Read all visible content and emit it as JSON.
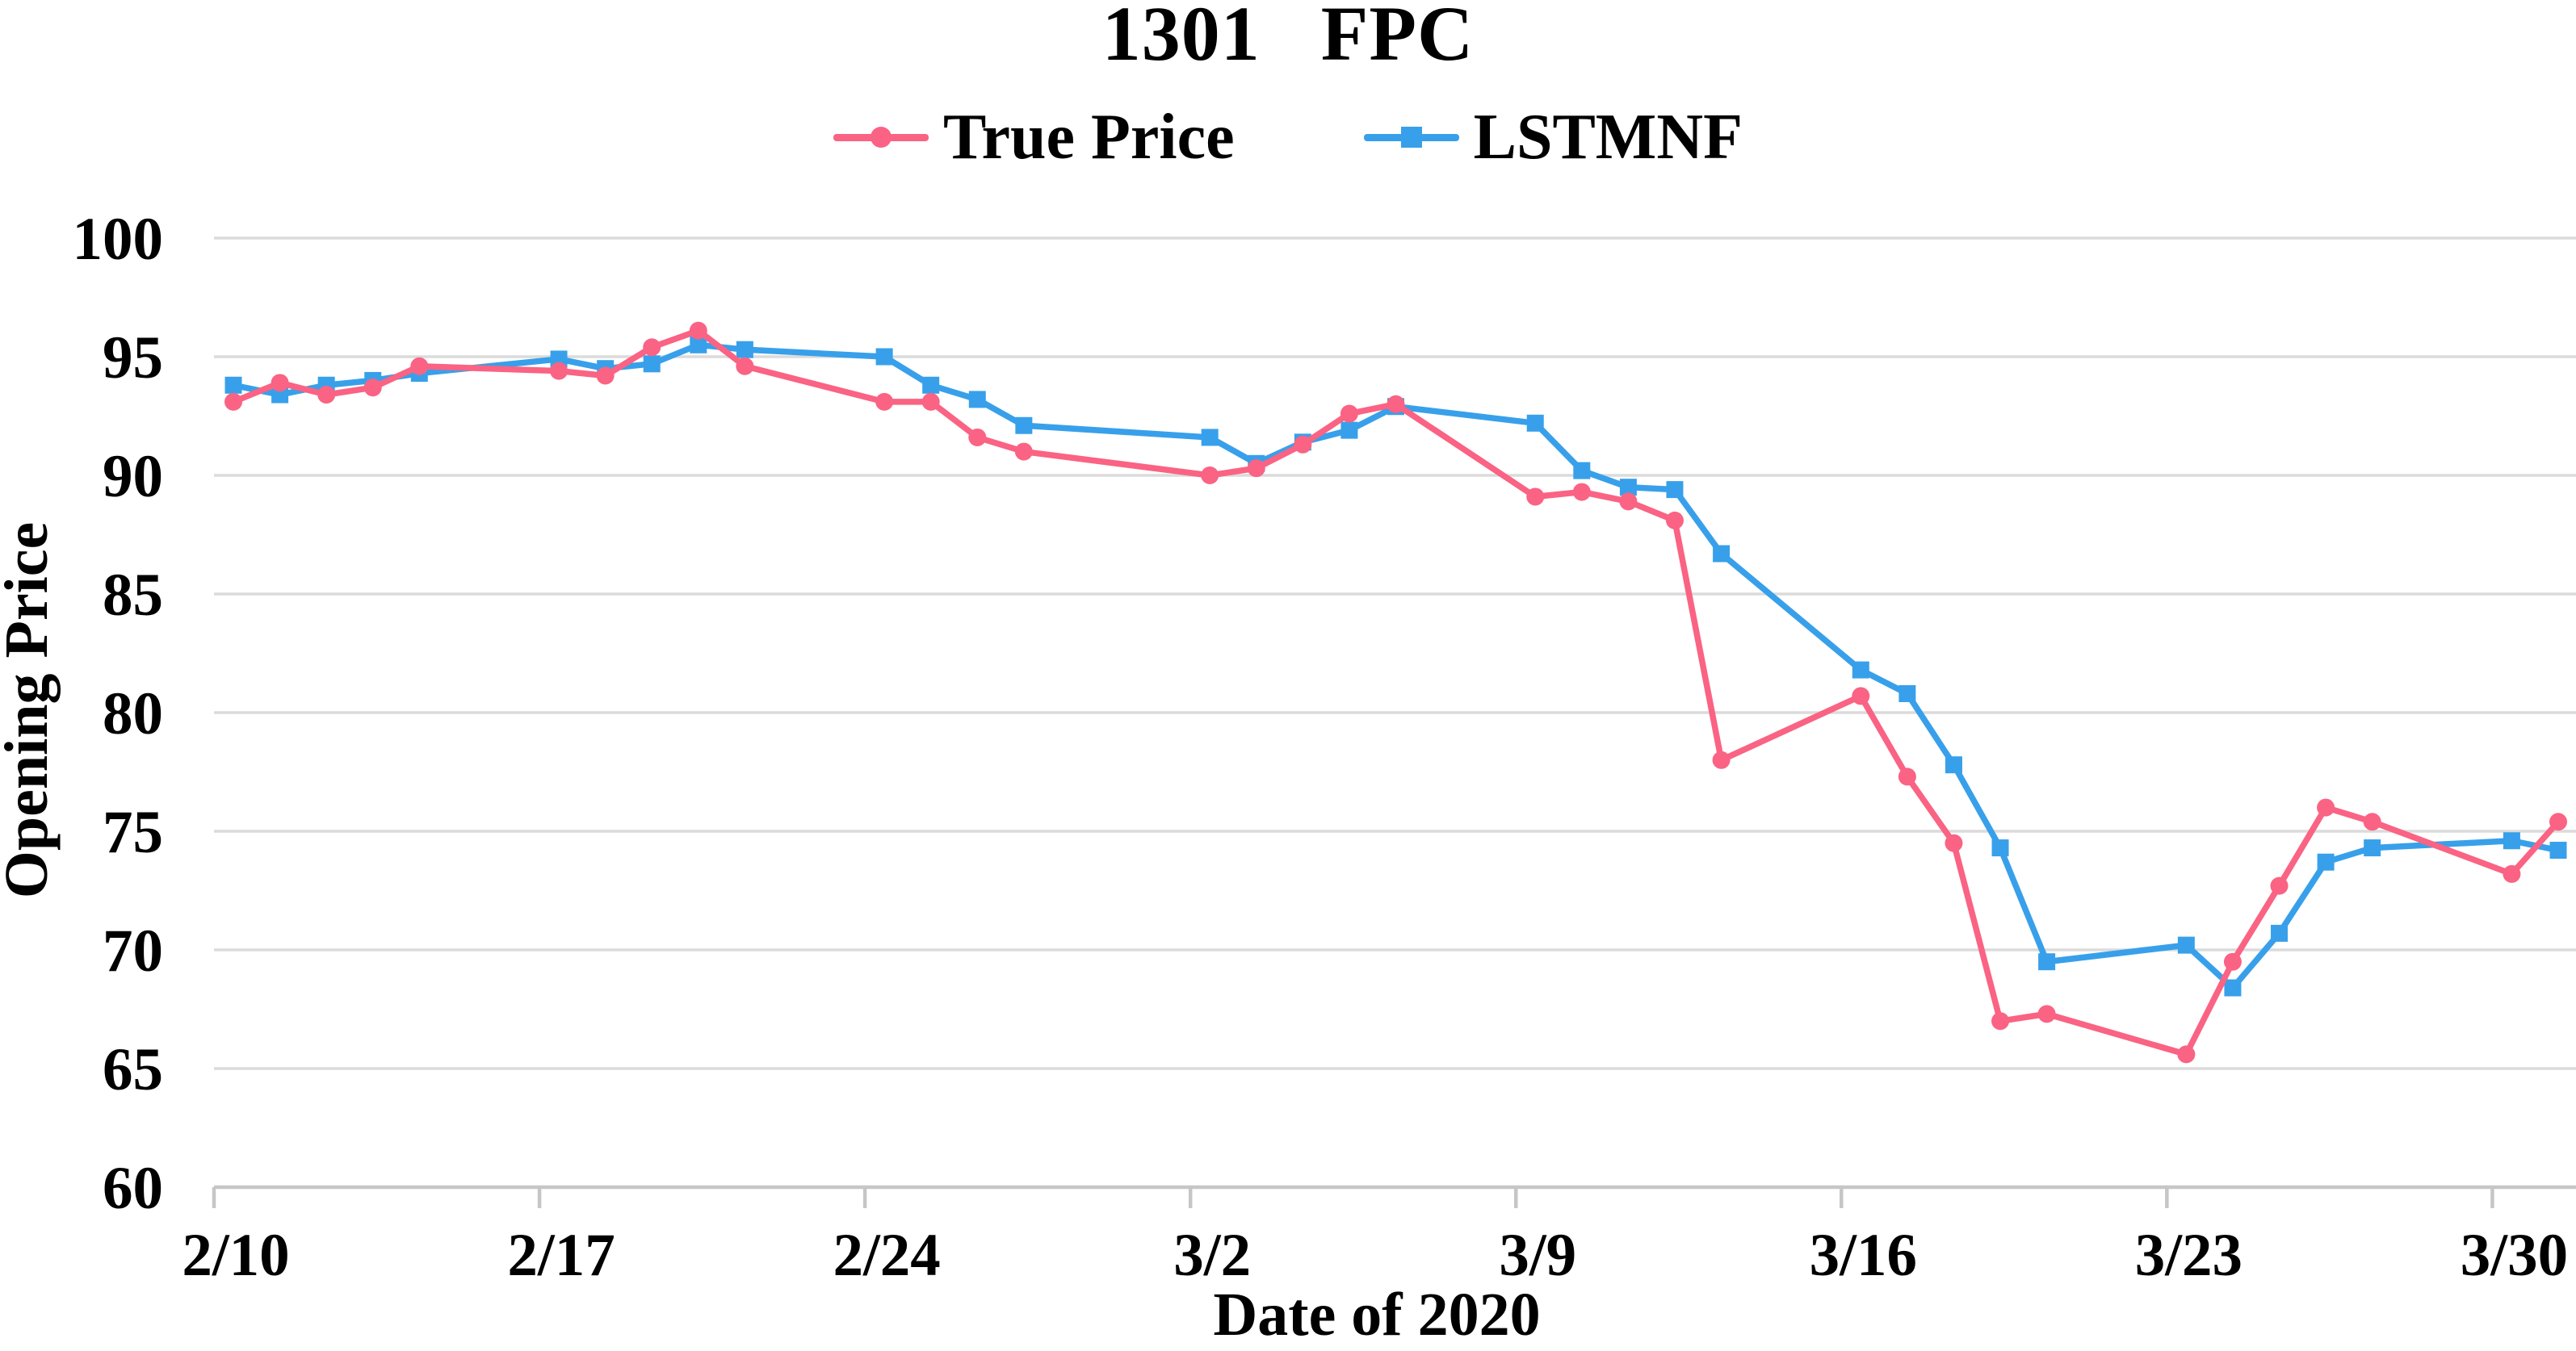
{
  "figure": {
    "title": "1301   FPC",
    "legend": [
      {
        "label": "True Price",
        "color": "#FA6383",
        "marker": "circle"
      },
      {
        "label": "LSTMNF",
        "color": "#38A0EA",
        "marker": "square"
      }
    ],
    "y_axis": {
      "title": "Opening Price",
      "ticks": [
        100,
        95,
        90,
        85,
        80,
        75,
        70,
        65,
        60
      ]
    },
    "x_axis": {
      "title": "Date of 2020",
      "tick_labels": [
        "2/10",
        "2/17",
        "2/24",
        "3/2",
        "3/9",
        "3/16",
        "3/23",
        "3/30"
      ]
    }
  },
  "chart_data": {
    "type": "line",
    "title": "1301   FPC",
    "xlabel": "Date of 2020",
    "ylabel": "Opening Price",
    "ylim": [
      60,
      100
    ],
    "y_ticks": [
      100,
      95,
      90,
      85,
      80,
      75,
      70,
      65,
      60
    ],
    "x_tick_labels": [
      "2/10",
      "2/17",
      "2/24",
      "3/2",
      "3/9",
      "3/16",
      "3/23",
      "3/30"
    ],
    "grid": true,
    "legend_position": "top",
    "grid_color": "#DBDBDB",
    "axis_color": "#C6C6C6",
    "x": [
      "2/10",
      "2/11",
      "2/12",
      "2/13",
      "2/14",
      "2/17",
      "2/18",
      "2/19",
      "2/20",
      "2/21",
      "2/24",
      "2/25",
      "2/26",
      "2/27",
      "3/2",
      "3/3",
      "3/4",
      "3/5",
      "3/6",
      "3/9",
      "3/10",
      "3/11",
      "3/12",
      "3/13",
      "3/16",
      "3/17",
      "3/18",
      "3/19",
      "3/20",
      "3/23",
      "3/24",
      "3/25",
      "3/26",
      "3/27",
      "3/30",
      "3/31"
    ],
    "day_offsets": [
      0,
      1,
      2,
      3,
      4,
      7,
      8,
      9,
      10,
      11,
      14,
      15,
      16,
      17,
      21,
      22,
      23,
      24,
      25,
      28,
      29,
      30,
      31,
      32,
      35,
      36,
      37,
      38,
      39,
      42,
      43,
      44,
      45,
      46,
      49,
      50
    ],
    "series": [
      {
        "name": "True Price",
        "color": "#FA6383",
        "marker": "circle",
        "values": [
          93.1,
          93.9,
          93.4,
          93.7,
          94.6,
          94.4,
          94.2,
          95.4,
          96.1,
          94.6,
          93.1,
          93.1,
          91.6,
          91.0,
          90.0,
          90.3,
          91.3,
          92.6,
          93.0,
          89.1,
          89.3,
          88.9,
          88.1,
          78.0,
          80.7,
          77.3,
          74.5,
          67.0,
          67.3,
          65.6,
          69.5,
          72.7,
          76.0,
          75.4,
          73.2,
          75.4
        ]
      },
      {
        "name": "LSTMNF",
        "color": "#38A0EA",
        "marker": "square",
        "values": [
          93.8,
          93.4,
          93.8,
          94.0,
          94.3,
          94.9,
          94.5,
          94.7,
          95.5,
          95.3,
          95.0,
          93.8,
          93.2,
          92.1,
          91.6,
          90.5,
          91.4,
          91.9,
          92.9,
          92.2,
          90.2,
          89.5,
          89.4,
          86.7,
          81.8,
          80.8,
          77.8,
          74.3,
          69.5,
          70.2,
          68.4,
          70.7,
          73.7,
          74.3,
          74.6,
          74.2
        ]
      }
    ]
  }
}
